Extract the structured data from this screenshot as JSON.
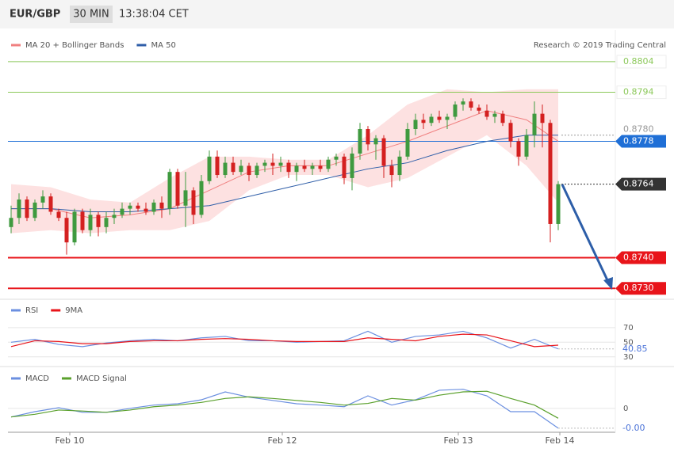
{
  "header": {
    "symbol": "EUR/GBP",
    "timeframe": "30 MIN",
    "time": "13:38:04 CET"
  },
  "chart_data": [
    {
      "type": "candlestick",
      "source": "Research © 2019 Trading Central",
      "up_color": "#3f9a3f",
      "down_color": "#d42020",
      "ylim": [
        0.87267,
        0.88143
      ],
      "candles": [
        [
          0.875,
          0.8757,
          0.8748,
          0.8753
        ],
        [
          0.8753,
          0.8761,
          0.8751,
          0.8759
        ],
        [
          0.8759,
          0.876,
          0.8752,
          0.8753
        ],
        [
          0.8753,
          0.8759,
          0.8752,
          0.8758
        ],
        [
          0.8758,
          0.8762,
          0.8756,
          0.876
        ],
        [
          0.876,
          0.8761,
          0.8754,
          0.8755
        ],
        [
          0.8755,
          0.8756,
          0.8752,
          0.8753
        ],
        [
          0.8753,
          0.8755,
          0.8741,
          0.8745
        ],
        [
          0.8745,
          0.8756,
          0.8744,
          0.8755
        ],
        [
          0.8755,
          0.8756,
          0.8748,
          0.8749
        ],
        [
          0.8749,
          0.8756,
          0.8747,
          0.8754
        ],
        [
          0.8754,
          0.8755,
          0.8747,
          0.875
        ],
        [
          0.875,
          0.8755,
          0.8748,
          0.8753
        ],
        [
          0.8753,
          0.8756,
          0.8751,
          0.8754
        ],
        [
          0.8754,
          0.8758,
          0.8753,
          0.8756
        ],
        [
          0.8756,
          0.8758,
          0.8754,
          0.8757
        ],
        [
          0.8757,
          0.8758,
          0.8755,
          0.8756
        ],
        [
          0.8756,
          0.8758,
          0.8754,
          0.8755
        ],
        [
          0.8755,
          0.8759,
          0.8754,
          0.8758
        ],
        [
          0.8758,
          0.876,
          0.8753,
          0.8756
        ],
        [
          0.8756,
          0.8769,
          0.8754,
          0.8768
        ],
        [
          0.8768,
          0.8769,
          0.8756,
          0.8757
        ],
        [
          0.8757,
          0.8768,
          0.875,
          0.8762
        ],
        [
          0.8762,
          0.8763,
          0.8751,
          0.8754
        ],
        [
          0.8754,
          0.8767,
          0.8753,
          0.8765
        ],
        [
          0.8765,
          0.8775,
          0.8764,
          0.8773
        ],
        [
          0.8773,
          0.8775,
          0.8766,
          0.8767
        ],
        [
          0.8767,
          0.8773,
          0.8766,
          0.8771
        ],
        [
          0.8771,
          0.8773,
          0.8767,
          0.8768
        ],
        [
          0.8768,
          0.8772,
          0.8767,
          0.877
        ],
        [
          0.877,
          0.8771,
          0.8765,
          0.8767
        ],
        [
          0.8767,
          0.8771,
          0.8766,
          0.877
        ],
        [
          0.877,
          0.8772,
          0.8768,
          0.8771
        ],
        [
          0.8771,
          0.8774,
          0.8767,
          0.877
        ],
        [
          0.877,
          0.8773,
          0.8768,
          0.8771
        ],
        [
          0.8771,
          0.8772,
          0.8766,
          0.8768
        ],
        [
          0.8768,
          0.8771,
          0.8765,
          0.877
        ],
        [
          0.877,
          0.8772,
          0.8768,
          0.8769
        ],
        [
          0.8769,
          0.8771,
          0.8767,
          0.877
        ],
        [
          0.877,
          0.8772,
          0.8768,
          0.8769
        ],
        [
          0.8769,
          0.8773,
          0.8768,
          0.8772
        ],
        [
          0.8772,
          0.8774,
          0.877,
          0.8773
        ],
        [
          0.8773,
          0.8774,
          0.8764,
          0.8766
        ],
        [
          0.8766,
          0.8776,
          0.8762,
          0.8774
        ],
        [
          0.8774,
          0.8784,
          0.8772,
          0.8782
        ],
        [
          0.8782,
          0.8783,
          0.8775,
          0.8777
        ],
        [
          0.8777,
          0.878,
          0.8772,
          0.8779
        ],
        [
          0.8779,
          0.878,
          0.8766,
          0.877
        ],
        [
          0.877,
          0.8772,
          0.8763,
          0.8767
        ],
        [
          0.8767,
          0.8775,
          0.8765,
          0.8773
        ],
        [
          0.8773,
          0.8784,
          0.8772,
          0.8782
        ],
        [
          0.8782,
          0.8787,
          0.878,
          0.8785
        ],
        [
          0.8785,
          0.8787,
          0.8782,
          0.8784
        ],
        [
          0.8784,
          0.8787,
          0.8783,
          0.8786
        ],
        [
          0.8786,
          0.8788,
          0.8784,
          0.8785
        ],
        [
          0.8785,
          0.8787,
          0.8782,
          0.8786
        ],
        [
          0.8786,
          0.8791,
          0.8785,
          0.879
        ],
        [
          0.879,
          0.8792,
          0.8788,
          0.8791
        ],
        [
          0.8791,
          0.8792,
          0.8788,
          0.8789
        ],
        [
          0.8789,
          0.879,
          0.8787,
          0.8788
        ],
        [
          0.8788,
          0.879,
          0.8785,
          0.8786
        ],
        [
          0.8786,
          0.8788,
          0.8784,
          0.8787
        ],
        [
          0.8787,
          0.8788,
          0.8783,
          0.8784
        ],
        [
          0.8784,
          0.8785,
          0.8776,
          0.8778
        ],
        [
          0.8778,
          0.8779,
          0.877,
          0.8773
        ],
        [
          0.8773,
          0.8782,
          0.8772,
          0.878
        ],
        [
          0.878,
          0.8791,
          0.8776,
          0.8787
        ],
        [
          0.8787,
          0.879,
          0.8776,
          0.8784
        ],
        [
          0.8784,
          0.8785,
          0.8745,
          0.8751
        ],
        [
          0.8751,
          0.8765,
          0.8749,
          0.8764
        ]
      ],
      "series": [
        {
          "name": "MA 20 + Bollinger Bands",
          "color": "#f08080",
          "band_color": "#fde1e1",
          "x": [
            0,
            5,
            10,
            15,
            20,
            25,
            30,
            35,
            40,
            45,
            50,
            55,
            60,
            65,
            69
          ],
          "values": [
            0.8756,
            0.8756,
            0.8753,
            0.8754,
            0.8756,
            0.8762,
            0.8768,
            0.877,
            0.877,
            0.8774,
            0.8778,
            0.8783,
            0.8788,
            0.8785,
            0.8778
          ],
          "upper": [
            0.8764,
            0.8763,
            0.8759,
            0.8758,
            0.8766,
            0.8773,
            0.8773,
            0.8772,
            0.8772,
            0.878,
            0.879,
            0.8795,
            0.8794,
            0.8795,
            0.8795
          ],
          "lower": [
            0.8748,
            0.8749,
            0.8748,
            0.8749,
            0.8749,
            0.8752,
            0.8762,
            0.8767,
            0.8767,
            0.8763,
            0.8766,
            0.8773,
            0.878,
            0.877,
            0.8758
          ]
        },
        {
          "name": "MA 50",
          "color": "#2f5ea8",
          "x": [
            0,
            5,
            10,
            15,
            20,
            25,
            30,
            35,
            40,
            45,
            50,
            55,
            60,
            65,
            69
          ],
          "values": [
            0.8756,
            0.8756,
            0.8755,
            0.8755,
            0.8756,
            0.8757,
            0.876,
            0.8763,
            0.8766,
            0.8769,
            0.8771,
            0.8775,
            0.8778,
            0.878,
            0.878
          ]
        }
      ],
      "levels": [
        {
          "value": 0.8804,
          "color": "#8cc85a",
          "style": "outline",
          "line": "solid"
        },
        {
          "value": 0.8794,
          "color": "#8cc85a",
          "style": "outline",
          "line": "solid"
        },
        {
          "value": 0.878,
          "label": "0.8780",
          "color": "#999999",
          "style": "plain",
          "line": "dotted"
        },
        {
          "value": 0.8778,
          "color": "#1f6fd6",
          "style": "filled",
          "line": "solid"
        },
        {
          "value": 0.8764,
          "color": "#333333",
          "style": "filled",
          "line": "dotted"
        },
        {
          "value": 0.874,
          "label": "0.8740",
          "color": "#e8141a",
          "style": "filled",
          "line": "solid"
        },
        {
          "value": 0.873,
          "label": "0.8730",
          "color": "#e8141a",
          "style": "filled",
          "line": "solid"
        }
      ]
    },
    {
      "type": "line",
      "ylim": [
        20,
        85
      ],
      "yticks": [
        30,
        50,
        70
      ],
      "current": 40.85,
      "current_color": "#4a72d8",
      "series": [
        {
          "name": "RSI",
          "color": "#6b8fe0",
          "x": [
            0,
            3,
            6,
            9,
            12,
            15,
            18,
            21,
            24,
            27,
            30,
            33,
            36,
            39,
            42,
            45,
            48,
            51,
            54,
            57,
            60,
            63,
            66,
            69
          ],
          "values": [
            50,
            54,
            47,
            44,
            49,
            52,
            54,
            52,
            56,
            58,
            52,
            52,
            50,
            51,
            52,
            65,
            50,
            58,
            60,
            65,
            56,
            42,
            54,
            40.85
          ]
        },
        {
          "name": "9MA",
          "color": "#e8141a",
          "x": [
            0,
            3,
            6,
            9,
            12,
            15,
            18,
            21,
            24,
            27,
            30,
            33,
            36,
            39,
            42,
            45,
            48,
            51,
            54,
            57,
            60,
            63,
            66,
            69
          ],
          "values": [
            44,
            52,
            51,
            48,
            48,
            51,
            52,
            52,
            54,
            55,
            54,
            52,
            51,
            51,
            51,
            56,
            54,
            52,
            58,
            61,
            60,
            52,
            44,
            46
          ]
        }
      ]
    },
    {
      "type": "line",
      "ylim": [
        -0.0007,
        0.0011
      ],
      "yticks": [
        0
      ],
      "current": {
        "value": -0.0006,
        "label": "-0.00"
      },
      "current_color": "#4a72d8",
      "xticks": [
        {
          "value": 7.4,
          "label": "Feb 10"
        },
        {
          "value": 34.2,
          "label": "Feb 12"
        },
        {
          "value": 56.4,
          "label": "Feb 13"
        },
        {
          "value": 69.2,
          "label": "Feb 14"
        }
      ],
      "series": [
        {
          "name": "MACD",
          "color": "#6b8fe0",
          "x": [
            0,
            3,
            6,
            9,
            12,
            15,
            18,
            21,
            24,
            27,
            30,
            33,
            36,
            39,
            42,
            45,
            48,
            51,
            54,
            57,
            60,
            63,
            66,
            69
          ],
          "values": [
            -0.00026,
            -0.0001,
            2e-05,
            -0.00012,
            -0.00012,
            0,
            0.0001,
            0.00014,
            0.00026,
            0.0005,
            0.00034,
            0.00024,
            0.00014,
            0.0001,
            5e-05,
            0.00038,
            0.0001,
            0.00026,
            0.00055,
            0.00058,
            0.00038,
            -0.0001,
            -0.0001,
            -0.0006
          ]
        },
        {
          "name": "MACD Signal",
          "color": "#5aa02c",
          "x": [
            0,
            3,
            6,
            9,
            12,
            15,
            18,
            21,
            24,
            27,
            30,
            33,
            36,
            39,
            42,
            45,
            48,
            51,
            54,
            57,
            60,
            63,
            66,
            69
          ],
          "values": [
            -0.00026,
            -0.00018,
            -5e-05,
            -8e-05,
            -0.00012,
            -5e-05,
            5e-05,
            0.0001,
            0.00018,
            0.0003,
            0.00035,
            0.0003,
            0.00024,
            0.00018,
            0.0001,
            0.00015,
            0.0003,
            0.00025,
            0.0004,
            0.0005,
            0.00052,
            0.0003,
            0.0001,
            -0.0003
          ]
        }
      ]
    }
  ]
}
